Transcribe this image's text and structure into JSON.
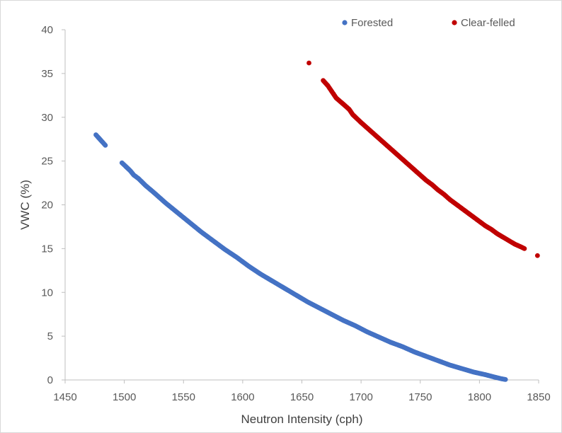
{
  "chart_data": {
    "type": "scatter",
    "title": "",
    "xlabel": "Neutron Intensity (cph)",
    "ylabel": "VWC (%)",
    "xlim": [
      1450,
      1850
    ],
    "ylim": [
      0,
      40
    ],
    "x_ticks": [
      "1450",
      "1500",
      "1550",
      "1600",
      "1650",
      "1700",
      "1750",
      "1800",
      "1850"
    ],
    "y_ticks": [
      "0",
      "5",
      "10",
      "15",
      "20",
      "25",
      "30",
      "35",
      "40"
    ],
    "grid": false,
    "legend_position": "top",
    "series": [
      {
        "name": "Forested",
        "color": "#4472c4",
        "points": [
          [
            1476,
            28.0
          ],
          [
            1482,
            27.1
          ],
          [
            1484,
            26.8
          ],
          [
            1498,
            24.8
          ],
          [
            1505,
            23.9
          ],
          [
            1508,
            23.4
          ],
          [
            1512,
            23.0
          ],
          [
            1518,
            22.2
          ],
          [
            1525,
            21.4
          ],
          [
            1535,
            20.2
          ],
          [
            1545,
            19.1
          ],
          [
            1555,
            18.0
          ],
          [
            1565,
            16.9
          ],
          [
            1575,
            15.9
          ],
          [
            1585,
            14.9
          ],
          [
            1595,
            14.0
          ],
          [
            1605,
            13.0
          ],
          [
            1615,
            12.1
          ],
          [
            1625,
            11.3
          ],
          [
            1635,
            10.5
          ],
          [
            1645,
            9.7
          ],
          [
            1655,
            8.9
          ],
          [
            1665,
            8.2
          ],
          [
            1675,
            7.5
          ],
          [
            1685,
            6.8
          ],
          [
            1695,
            6.2
          ],
          [
            1705,
            5.5
          ],
          [
            1715,
            4.9
          ],
          [
            1725,
            4.3
          ],
          [
            1735,
            3.8
          ],
          [
            1745,
            3.2
          ],
          [
            1755,
            2.7
          ],
          [
            1765,
            2.2
          ],
          [
            1775,
            1.7
          ],
          [
            1785,
            1.3
          ],
          [
            1795,
            0.9
          ],
          [
            1805,
            0.6
          ],
          [
            1812,
            0.35
          ],
          [
            1818,
            0.15
          ],
          [
            1822,
            0.05
          ]
        ]
      },
      {
        "name": "Clear-felled",
        "color": "#c00000",
        "points": [
          [
            1656,
            36.2
          ],
          [
            1668,
            34.2
          ],
          [
            1672,
            33.6
          ],
          [
            1676,
            32.8
          ],
          [
            1679,
            32.2
          ],
          [
            1685,
            31.5
          ],
          [
            1690,
            30.9
          ],
          [
            1693,
            30.3
          ],
          [
            1700,
            29.4
          ],
          [
            1705,
            28.8
          ],
          [
            1710,
            28.2
          ],
          [
            1715,
            27.6
          ],
          [
            1720,
            27.0
          ],
          [
            1725,
            26.4
          ],
          [
            1730,
            25.8
          ],
          [
            1735,
            25.2
          ],
          [
            1740,
            24.6
          ],
          [
            1745,
            24.0
          ],
          [
            1750,
            23.4
          ],
          [
            1755,
            22.8
          ],
          [
            1760,
            22.3
          ],
          [
            1765,
            21.7
          ],
          [
            1770,
            21.2
          ],
          [
            1775,
            20.6
          ],
          [
            1780,
            20.1
          ],
          [
            1785,
            19.6
          ],
          [
            1790,
            19.1
          ],
          [
            1795,
            18.6
          ],
          [
            1800,
            18.1
          ],
          [
            1805,
            17.6
          ],
          [
            1810,
            17.2
          ],
          [
            1815,
            16.7
          ],
          [
            1820,
            16.3
          ],
          [
            1825,
            15.9
          ],
          [
            1830,
            15.5
          ],
          [
            1835,
            15.2
          ],
          [
            1838,
            15.0
          ],
          [
            1849,
            14.2
          ]
        ]
      }
    ]
  }
}
